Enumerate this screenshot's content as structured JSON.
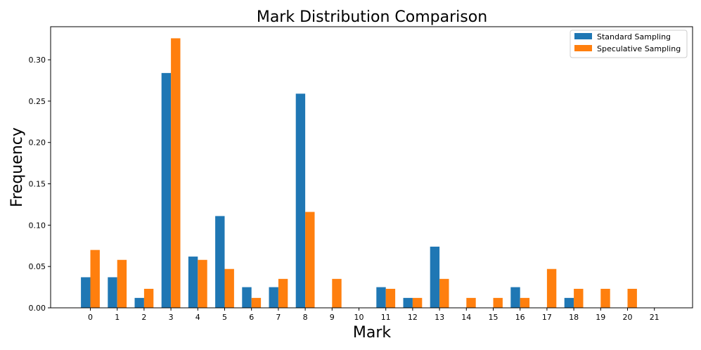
{
  "chart_data": {
    "type": "bar",
    "title": "Mark Distribution Comparison",
    "xlabel": "Mark",
    "ylabel": "Frequency",
    "categories": [
      "0",
      "1",
      "2",
      "3",
      "4",
      "5",
      "6",
      "7",
      "8",
      "9",
      "10",
      "11",
      "12",
      "13",
      "14",
      "15",
      "16",
      "17",
      "18",
      "19",
      "20",
      "21"
    ],
    "ylim": [
      0,
      0.34
    ],
    "yticks": [
      "0.00",
      "0.05",
      "0.10",
      "0.15",
      "0.20",
      "0.25",
      "0.30"
    ],
    "grid": false,
    "legend_position": "top-right",
    "series": [
      {
        "name": "Standard Sampling",
        "color": "#1f77b4",
        "values": [
          0.037,
          0.037,
          0.012,
          0.284,
          0.062,
          0.111,
          0.025,
          0.025,
          0.259,
          0,
          0,
          0.025,
          0.012,
          0.074,
          0,
          0,
          0.025,
          0,
          0.012,
          0,
          0,
          0
        ]
      },
      {
        "name": "Speculative Sampling",
        "color": "#ff7f0e",
        "values": [
          0.07,
          0.058,
          0.023,
          0.326,
          0.058,
          0.047,
          0.012,
          0.035,
          0.116,
          0.035,
          0,
          0.023,
          0.012,
          0.035,
          0.012,
          0.012,
          0.012,
          0.047,
          0.023,
          0.023,
          0.023,
          0
        ]
      }
    ]
  }
}
